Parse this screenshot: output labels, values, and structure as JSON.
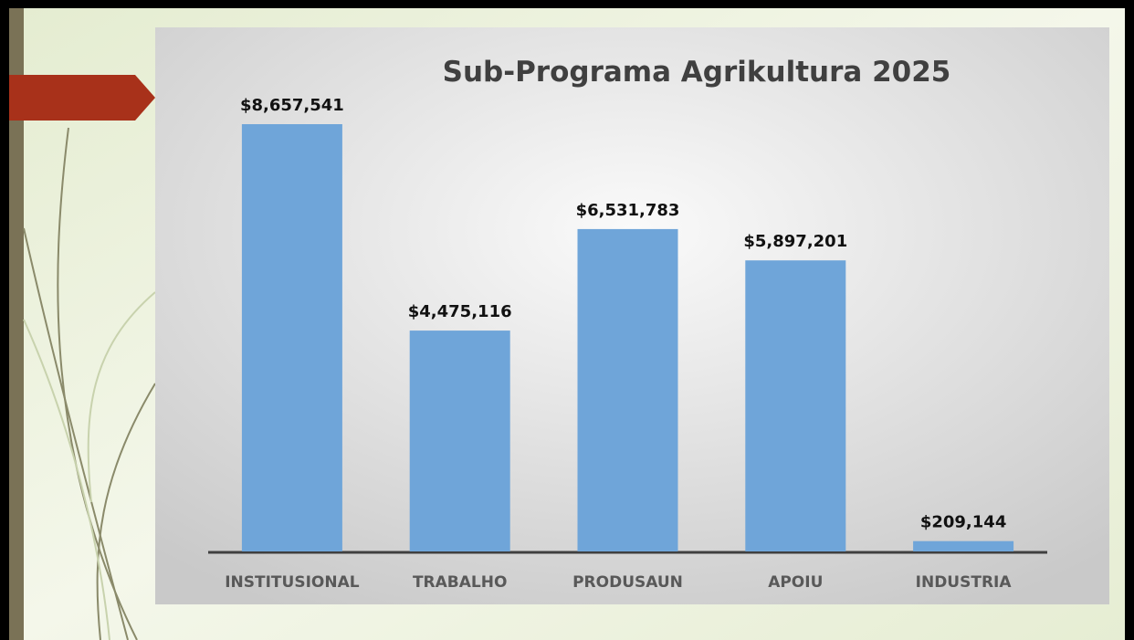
{
  "chart_data": {
    "type": "bar",
    "title": "Sub-Programa Agrikultura 2025",
    "categories": [
      "INSTITUSIONAL",
      "TRABALHO",
      "PRODUSAUN",
      "APOIU",
      "INDUSTRIA"
    ],
    "values": [
      8657541,
      4475116,
      6531783,
      5897201,
      209144
    ],
    "value_labels": [
      "$8,657,541",
      "$4,475,116",
      "$6,531,783",
      "$5,897,201",
      "$209,144"
    ],
    "color": "#6fa5d9"
  }
}
